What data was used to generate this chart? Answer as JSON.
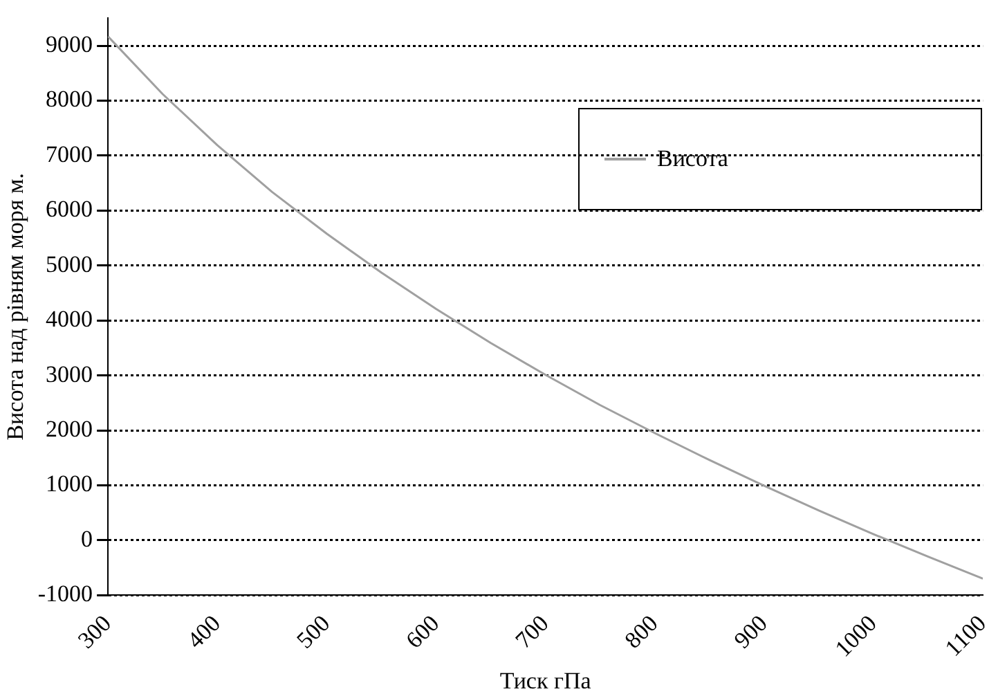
{
  "chart_data": {
    "type": "line",
    "xlabel": "Тиск гПа",
    "ylabel": "Висота над рівням моря м.",
    "x": [
      300,
      350,
      400,
      450,
      500,
      550,
      600,
      650,
      700,
      750,
      800,
      850,
      900,
      950,
      1000,
      1050,
      1100
    ],
    "series": [
      {
        "name": "Висота",
        "color": "#a0a0a0",
        "values": [
          9170,
          8120,
          7190,
          6340,
          5580,
          4870,
          4210,
          3590,
          3010,
          2460,
          1950,
          1460,
          990,
          540,
          110,
          -300,
          -700
        ]
      }
    ],
    "xlim": [
      300,
      1100
    ],
    "xticks": [
      300,
      400,
      500,
      600,
      700,
      800,
      900,
      1000,
      1100
    ],
    "ylim": [
      -1000,
      9500
    ],
    "yticks": [
      -1000,
      0,
      1000,
      2000,
      3000,
      4000,
      5000,
      6000,
      7000,
      8000,
      9000
    ],
    "grid": "y",
    "legend": "top right",
    "marker": "none",
    "line_style": "solid"
  }
}
